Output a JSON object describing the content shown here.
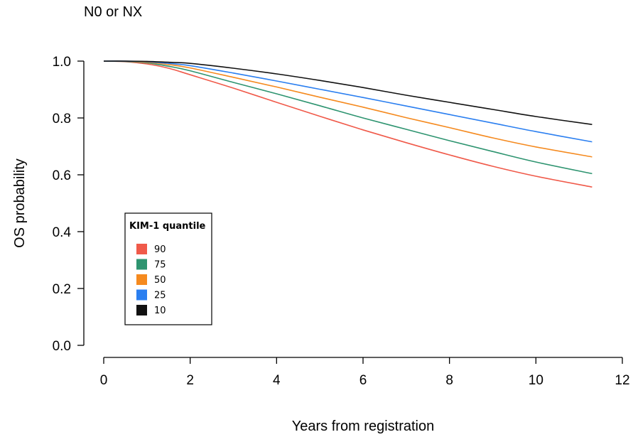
{
  "chart_data": {
    "type": "line",
    "title": "N0 or NX",
    "xlabel": "Years from registration",
    "ylabel": "OS probability",
    "xlim": [
      0,
      12
    ],
    "ylim": [
      0,
      1
    ],
    "x_ticks": [
      "0",
      "2",
      "4",
      "6",
      "8",
      "10",
      "12"
    ],
    "y_ticks": [
      "0.0",
      "0.2",
      "0.4",
      "0.6",
      "0.8",
      "1.0"
    ],
    "grid": false,
    "legend": {
      "title": "KIM-1 quantile",
      "placement": "bottom-left"
    },
    "x": [
      0,
      0.5,
      1,
      1.5,
      2,
      3,
      4,
      5,
      6,
      7,
      8,
      9,
      10,
      11.3
    ],
    "series": [
      {
        "name": "90",
        "color": "#f05a4a",
        "values": [
          1.0,
          0.998,
          0.99,
          0.975,
          0.952,
          0.905,
          0.855,
          0.806,
          0.758,
          0.713,
          0.67,
          0.63,
          0.595,
          0.557
        ]
      },
      {
        "name": "75",
        "color": "#2e9470",
        "values": [
          1.0,
          0.999,
          0.994,
          0.982,
          0.966,
          0.925,
          0.885,
          0.843,
          0.8,
          0.76,
          0.72,
          0.682,
          0.645,
          0.604
        ]
      },
      {
        "name": "50",
        "color": "#f58a1f",
        "values": [
          1.0,
          1.0,
          0.996,
          0.988,
          0.976,
          0.943,
          0.909,
          0.873,
          0.838,
          0.801,
          0.766,
          0.73,
          0.698,
          0.663
        ]
      },
      {
        "name": "25",
        "color": "#2b7ff0",
        "values": [
          1.0,
          1.0,
          0.998,
          0.992,
          0.984,
          0.958,
          0.93,
          0.901,
          0.872,
          0.842,
          0.812,
          0.782,
          0.752,
          0.716
        ]
      },
      {
        "name": "10",
        "color": "#111111",
        "values": [
          1.0,
          1.0,
          0.999,
          0.996,
          0.992,
          0.975,
          0.955,
          0.932,
          0.907,
          0.88,
          0.855,
          0.83,
          0.805,
          0.777
        ]
      }
    ]
  }
}
